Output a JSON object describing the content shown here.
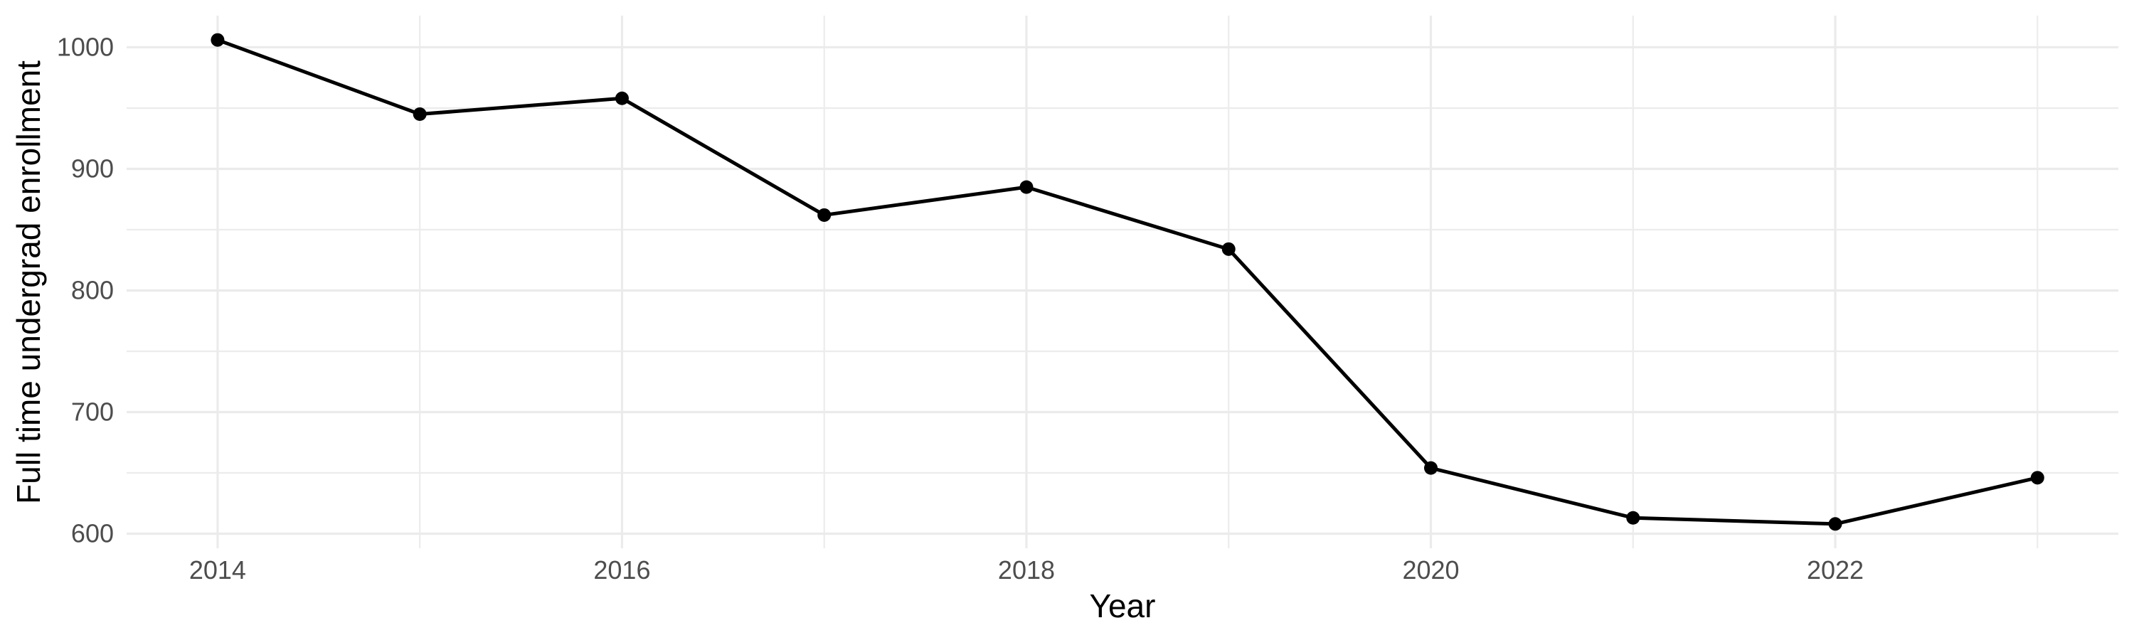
{
  "chart_data": {
    "type": "line",
    "title": "",
    "xlabel": "Year",
    "ylabel": "Full time undergrad enrollment",
    "series_name": "Full time undergrad enrollment",
    "x": [
      2014,
      2015,
      2016,
      2017,
      2018,
      2019,
      2020,
      2021,
      2022,
      2023
    ],
    "values": [
      1006,
      945,
      958,
      862,
      885,
      834,
      654,
      613,
      608,
      646
    ],
    "xlim": [
      2013.55,
      2023.4
    ],
    "ylim": [
      588,
      1026
    ],
    "grid": true,
    "legend_position": "none",
    "x_major_ticks": [
      {
        "value": 2014,
        "label": "2014"
      },
      {
        "value": 2016,
        "label": "2016"
      },
      {
        "value": 2018,
        "label": "2018"
      },
      {
        "value": 2020,
        "label": "2020"
      },
      {
        "value": 2022,
        "label": "2022"
      }
    ],
    "x_minor_ticks": [
      2015,
      2017,
      2019,
      2021,
      2023
    ],
    "y_major_ticks": [
      {
        "value": 600,
        "label": "600"
      },
      {
        "value": 700,
        "label": "700"
      },
      {
        "value": 800,
        "label": "800"
      },
      {
        "value": 900,
        "label": "900"
      },
      {
        "value": 1000,
        "label": "1000"
      }
    ],
    "y_minor_ticks": [
      650,
      750,
      850,
      950
    ],
    "colors": {
      "background": "#FFFFFF",
      "line": "#000000",
      "point": "#000000",
      "grid_major": "#EBEBEB",
      "grid_minor": "#ECECEC",
      "tick_label": "#4D4D4D",
      "axis_title": "#000000"
    }
  }
}
